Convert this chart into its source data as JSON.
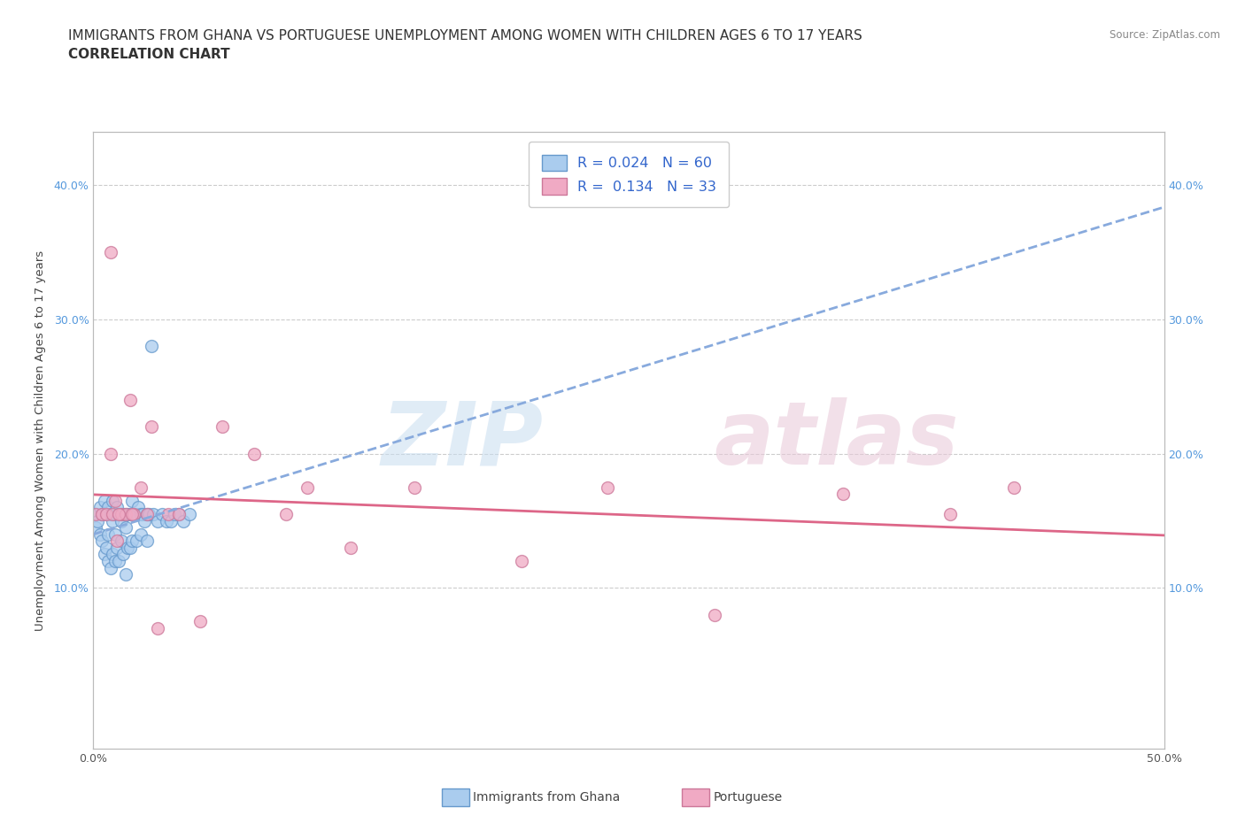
{
  "title_line1": "IMMIGRANTS FROM GHANA VS PORTUGUESE UNEMPLOYMENT AMONG WOMEN WITH CHILDREN AGES 6 TO 17 YEARS",
  "title_line2": "CORRELATION CHART",
  "source_text": "Source: ZipAtlas.com",
  "ylabel": "Unemployment Among Women with Children Ages 6 to 17 years",
  "xlim": [
    0.0,
    0.5
  ],
  "ylim": [
    -0.02,
    0.44
  ],
  "ghana_R": "0.024",
  "ghana_N": "60",
  "portuguese_R": "0.134",
  "portuguese_N": "33",
  "ghana_color": "#aaccee",
  "portuguese_color": "#f0aac4",
  "ghana_edge_color": "#6699cc",
  "portuguese_edge_color": "#cc7799",
  "ghana_line_color": "#88aadd",
  "portuguese_line_color": "#dd6688",
  "watermark_zip": "ZIP",
  "watermark_atlas": "atlas",
  "grid_color": "#cccccc",
  "background_color": "#ffffff",
  "title_fontsize": 11,
  "subtitle_fontsize": 11,
  "axis_label_fontsize": 9.5,
  "tick_fontsize": 9,
  "marker_size": 100,
  "ghana_scatter_x": [
    0.001,
    0.001,
    0.002,
    0.003,
    0.003,
    0.004,
    0.004,
    0.005,
    0.005,
    0.006,
    0.006,
    0.007,
    0.007,
    0.007,
    0.008,
    0.008,
    0.009,
    0.009,
    0.009,
    0.01,
    0.01,
    0.01,
    0.011,
    0.011,
    0.012,
    0.012,
    0.013,
    0.013,
    0.014,
    0.014,
    0.015,
    0.015,
    0.015,
    0.016,
    0.016,
    0.017,
    0.017,
    0.018,
    0.018,
    0.019,
    0.02,
    0.02,
    0.021,
    0.022,
    0.022,
    0.023,
    0.024,
    0.025,
    0.025,
    0.026,
    0.027,
    0.028,
    0.03,
    0.032,
    0.034,
    0.036,
    0.038,
    0.04,
    0.042,
    0.045
  ],
  "ghana_scatter_y": [
    0.155,
    0.145,
    0.15,
    0.16,
    0.14,
    0.155,
    0.135,
    0.165,
    0.125,
    0.155,
    0.13,
    0.16,
    0.14,
    0.12,
    0.155,
    0.115,
    0.15,
    0.165,
    0.125,
    0.155,
    0.14,
    0.12,
    0.16,
    0.13,
    0.155,
    0.12,
    0.15,
    0.135,
    0.155,
    0.125,
    0.155,
    0.145,
    0.11,
    0.155,
    0.13,
    0.155,
    0.13,
    0.165,
    0.135,
    0.155,
    0.155,
    0.135,
    0.16,
    0.155,
    0.14,
    0.155,
    0.15,
    0.155,
    0.135,
    0.155,
    0.28,
    0.155,
    0.15,
    0.155,
    0.15,
    0.15,
    0.155,
    0.155,
    0.15,
    0.155
  ],
  "portuguese_scatter_x": [
    0.001,
    0.004,
    0.006,
    0.008,
    0.009,
    0.01,
    0.011,
    0.013,
    0.015,
    0.017,
    0.019,
    0.022,
    0.025,
    0.027,
    0.035,
    0.04,
    0.05,
    0.06,
    0.075,
    0.09,
    0.1,
    0.12,
    0.15,
    0.2,
    0.24,
    0.29,
    0.35,
    0.4,
    0.43,
    0.008,
    0.012,
    0.018,
    0.03
  ],
  "portuguese_scatter_y": [
    0.155,
    0.155,
    0.155,
    0.2,
    0.155,
    0.165,
    0.135,
    0.155,
    0.155,
    0.24,
    0.155,
    0.175,
    0.155,
    0.22,
    0.155,
    0.155,
    0.075,
    0.22,
    0.2,
    0.155,
    0.175,
    0.13,
    0.175,
    0.12,
    0.175,
    0.08,
    0.17,
    0.155,
    0.175,
    0.35,
    0.155,
    0.155,
    0.07
  ],
  "right_axis_color": "#5599dd"
}
